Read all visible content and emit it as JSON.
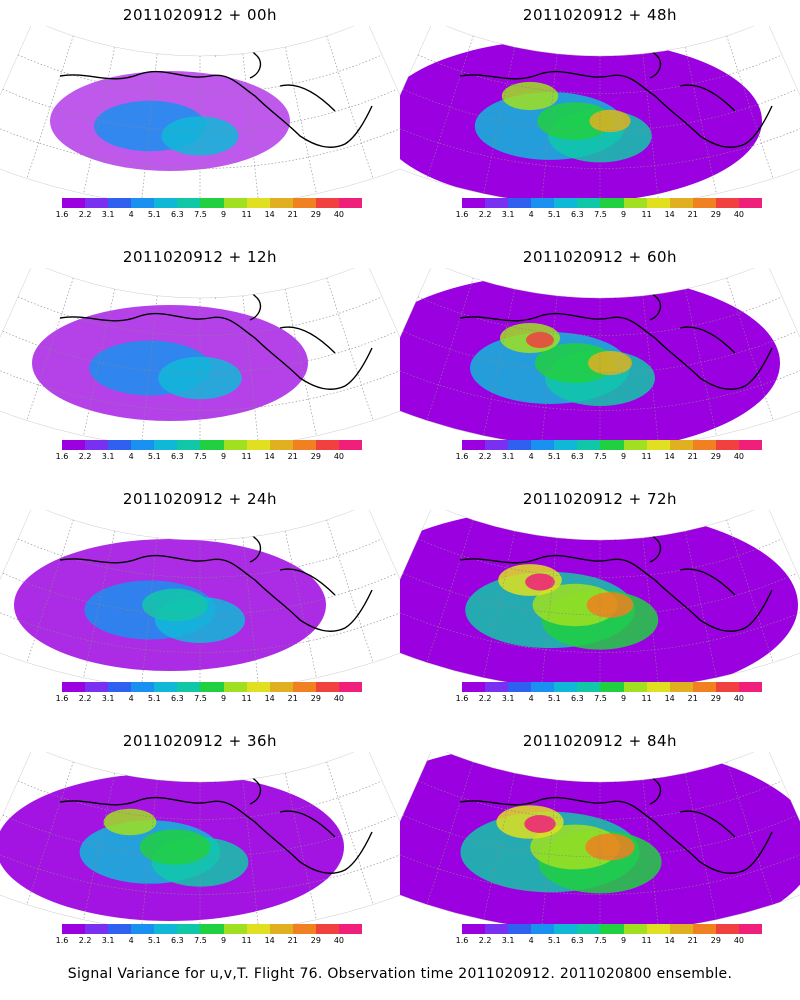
{
  "panels": [
    {
      "title": "2011020912 + 00h",
      "intensity": 0
    },
    {
      "title": "2011020912 + 48h",
      "intensity": 4
    },
    {
      "title": "2011020912 + 12h",
      "intensity": 1
    },
    {
      "title": "2011020912 + 60h",
      "intensity": 5
    },
    {
      "title": "2011020912 + 24h",
      "intensity": 2
    },
    {
      "title": "2011020912 + 72h",
      "intensity": 6
    },
    {
      "title": "2011020912 + 36h",
      "intensity": 3
    },
    {
      "title": "2011020912 + 84h",
      "intensity": 7
    }
  ],
  "colorbar": {
    "labels": [
      "1.6",
      "2.2",
      "3.1",
      "4",
      "5.1",
      "6.3",
      "7.5",
      "9",
      "11",
      "14",
      "21",
      "29",
      "40"
    ],
    "colors": [
      "#9b00e0",
      "#7a30f0",
      "#3060f0",
      "#1a90f0",
      "#10b8d8",
      "#10c8a8",
      "#20d040",
      "#a0e020",
      "#e0e020",
      "#e0b020",
      "#f08020",
      "#f04040",
      "#f0207a"
    ]
  },
  "caption": "Signal Variance for u,v,T. Flight 76. Observation time 2011020912. 2011020800 ensemble."
}
